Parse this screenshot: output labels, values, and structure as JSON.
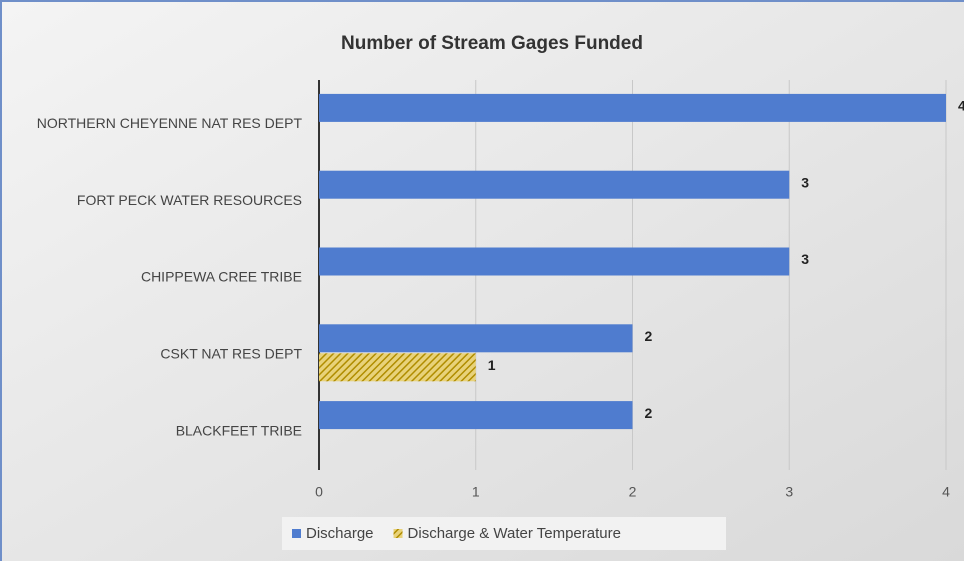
{
  "chart_data": {
    "type": "bar",
    "orientation": "horizontal",
    "title": "Number of Stream Gages Funded",
    "categories": [
      "NORTHERN CHEYENNE NAT RES DEPT",
      "FORT PECK WATER RESOURCES",
      "CHIPPEWA CREE TRIBE",
      "CSKT NAT RES DEPT",
      "BLACKFEET TRIBE"
    ],
    "series": [
      {
        "name": "Discharge",
        "color": "#4f7ccf",
        "values": [
          4,
          3,
          3,
          2,
          2
        ]
      },
      {
        "name": "Discharge & Water Temperature",
        "color": "#c9a400",
        "pattern": "hatch",
        "values": [
          null,
          null,
          null,
          1,
          null
        ]
      }
    ],
    "xlim": [
      0,
      4
    ],
    "xticks": [
      0,
      1,
      2,
      3,
      4
    ],
    "grid": true,
    "legend": "bottom"
  }
}
